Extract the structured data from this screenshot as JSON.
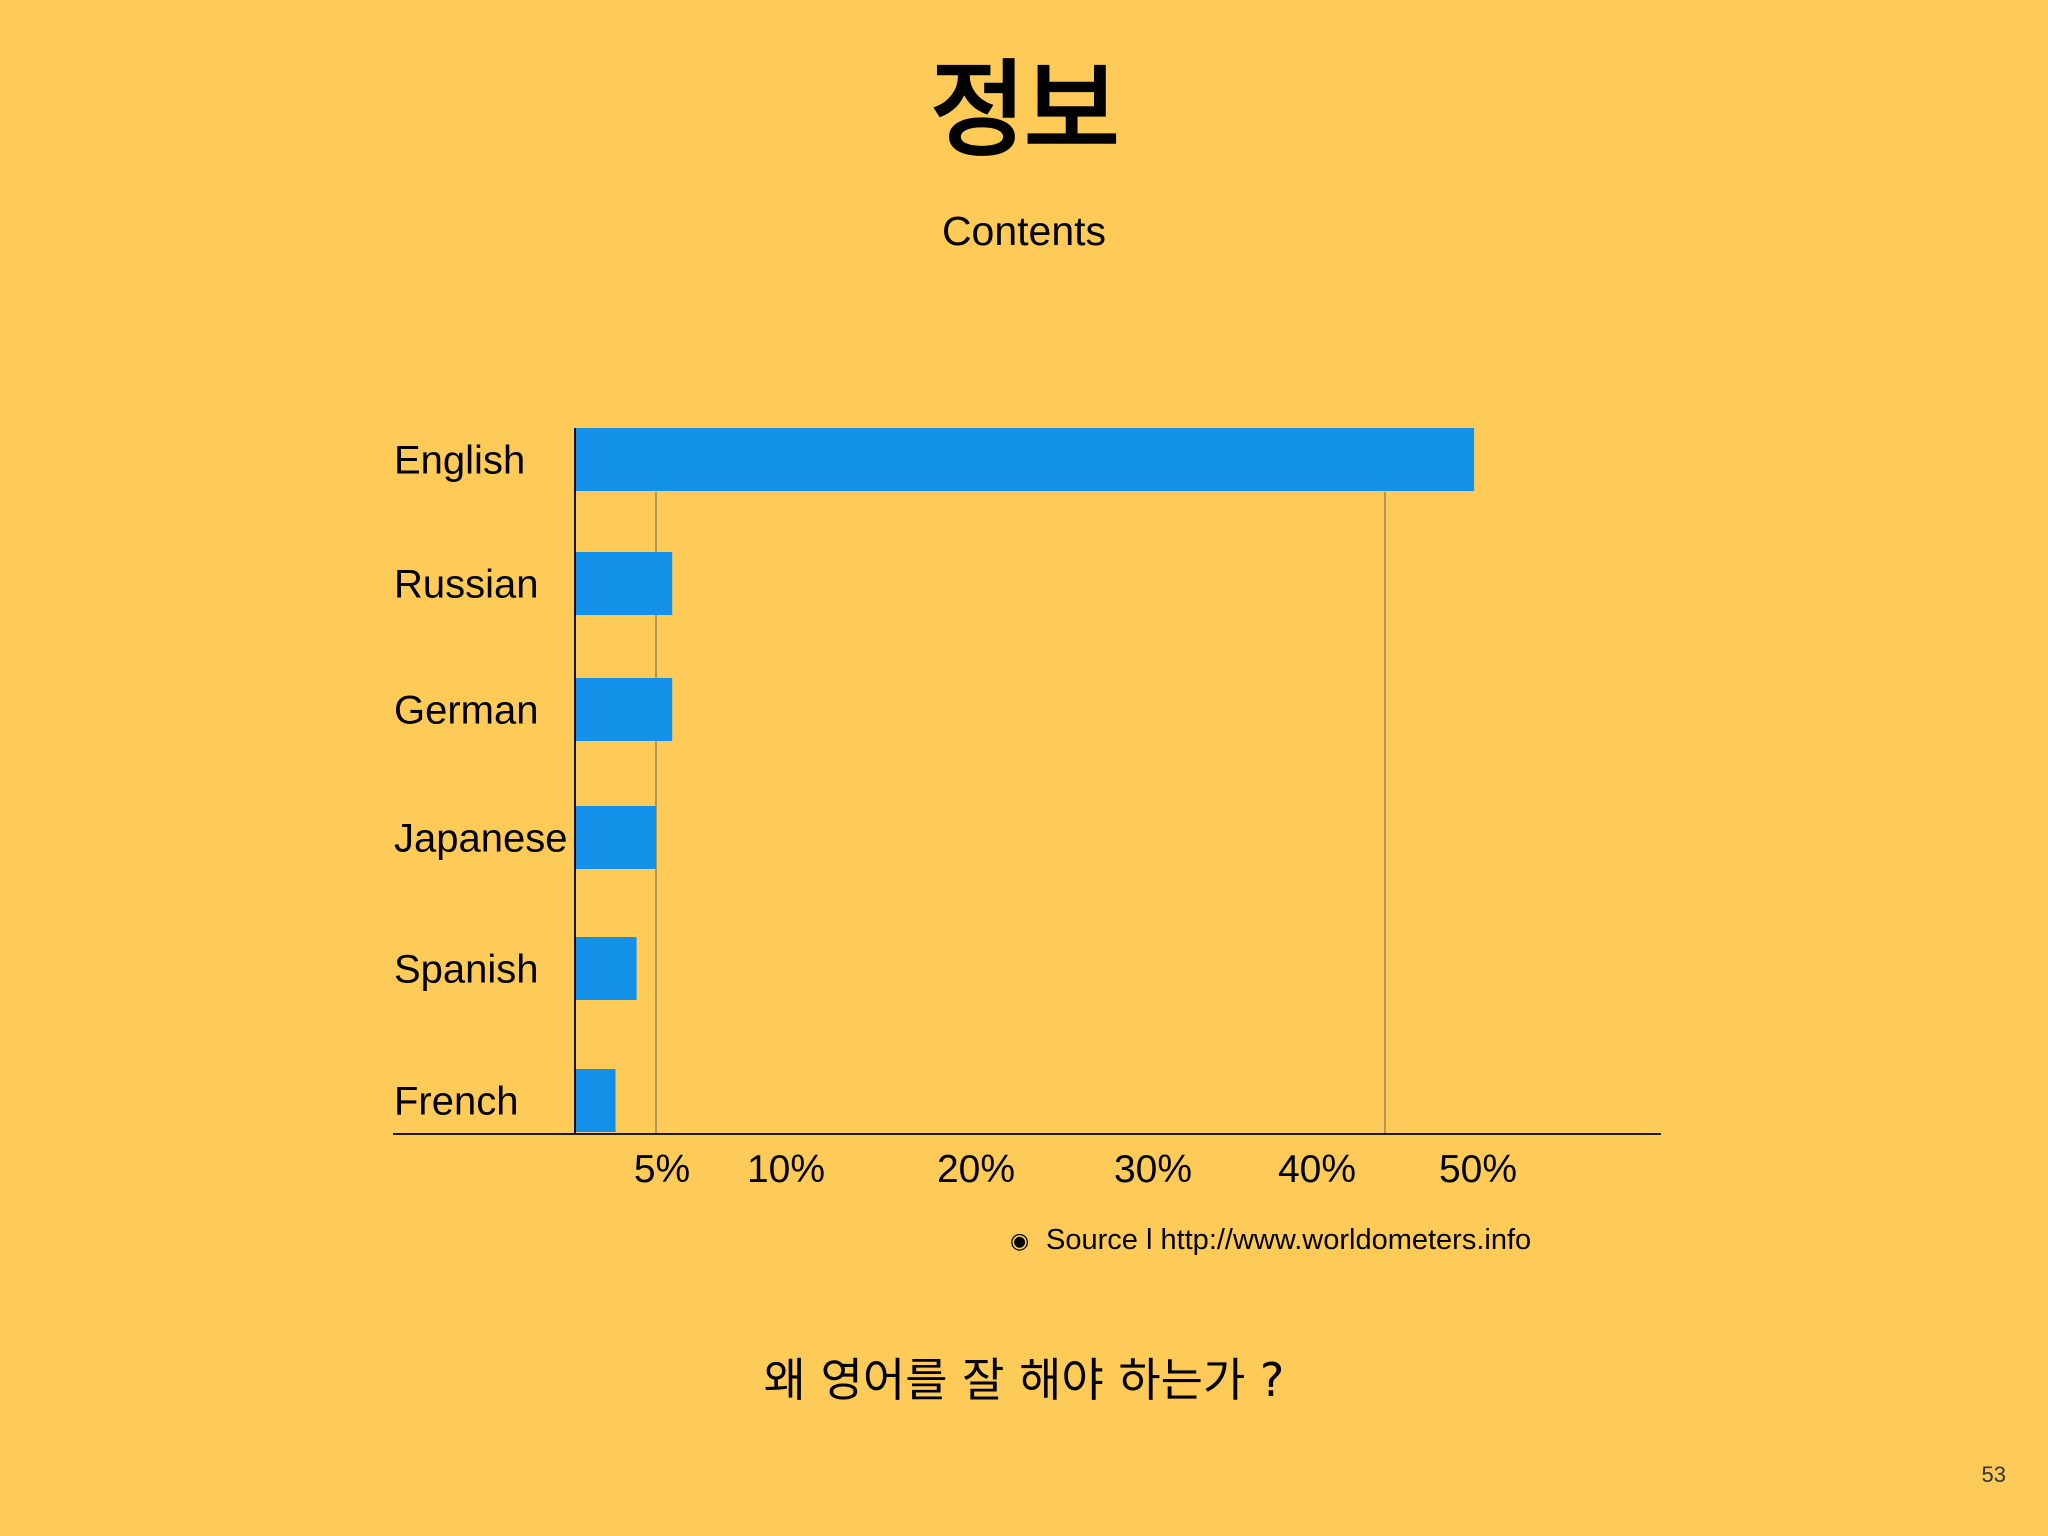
{
  "slide": {
    "title": "정보",
    "subtitle": "Contents",
    "source_bullet": "◉",
    "source_text": "Source l http://www.worldometers.info",
    "question": "왜 영어를 잘 해야 하는가 ?",
    "page_number": "53"
  },
  "colors": {
    "background": "#FECB58",
    "bar": "#1390E8",
    "axis": "#000000",
    "gridline": "#8A7A52"
  },
  "chart_data": {
    "type": "bar",
    "orientation": "horizontal",
    "categories": [
      "English",
      "Russian",
      "German",
      "Japanese",
      "Spanish",
      "French"
    ],
    "values": [
      55.5,
      6.0,
      6.0,
      5.0,
      3.8,
      2.5
    ],
    "tick_labels": [
      "5%",
      "10%",
      "20%",
      "30%",
      "40%",
      "50%"
    ],
    "gridlines_at": [
      5,
      50
    ],
    "xlim": [
      0,
      60
    ],
    "unit": "%"
  }
}
